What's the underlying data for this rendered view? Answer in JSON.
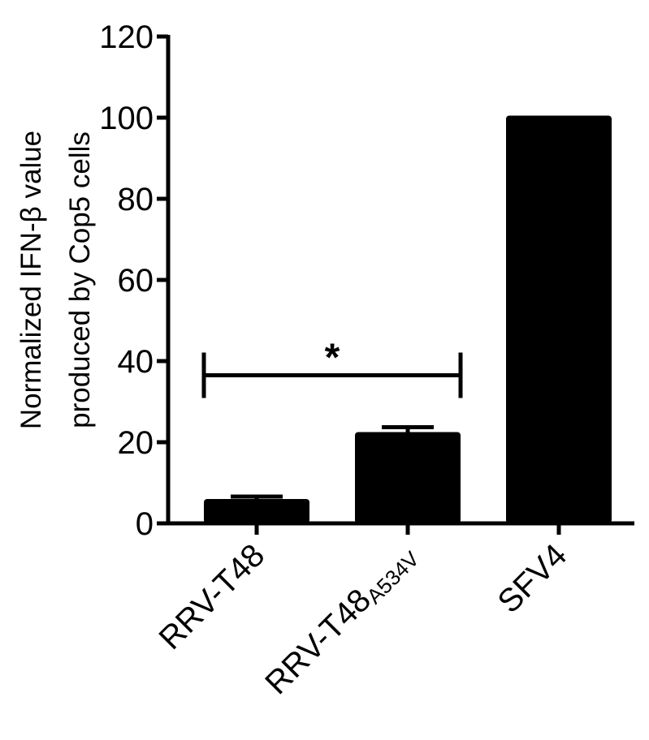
{
  "chart_data": {
    "type": "bar",
    "categories": [
      {
        "main": "RRV-T48",
        "sub": ""
      },
      {
        "main": "RRV-T48",
        "sub": "A534V"
      },
      {
        "main": "SFV4",
        "sub": ""
      }
    ],
    "values": [
      6,
      22.5,
      100.5
    ],
    "errors": [
      0.6,
      1.2,
      0
    ],
    "ylabel_lines": [
      "Normalized  IFN-β value",
      "produced by Cop5 cells"
    ],
    "ylim": [
      0,
      120
    ],
    "yticks": [
      0,
      20,
      40,
      60,
      80,
      100,
      120
    ],
    "bar_color": "#000000",
    "significance": {
      "from_category": 0,
      "to_category": 1,
      "label": "*",
      "y_value": 36.5
    },
    "grid": false
  }
}
